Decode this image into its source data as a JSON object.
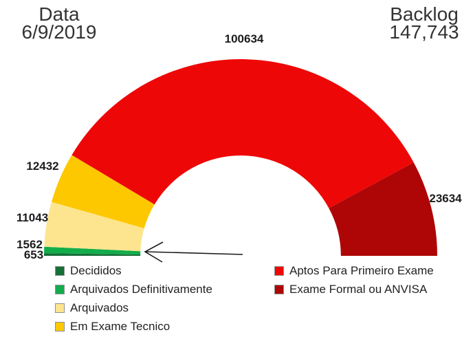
{
  "header": {
    "date_label": "Data",
    "date_value": "6/9/2019",
    "backlog_label": "Backlog",
    "backlog_value": "147,743"
  },
  "chart_data": {
    "type": "pie",
    "variant": "half_donut",
    "title": "",
    "categories": [
      "Decididos",
      "Arquivados Definitivamente",
      "Arquivados",
      "Em Exame Tecnico",
      "Aptos Para Primeiro Exame",
      "Exame Formal ou ANVISA"
    ],
    "values": [
      653,
      1562,
      11043,
      12432,
      100634,
      23634
    ],
    "colors": [
      "#166e38",
      "#12ad4b",
      "#fde58f",
      "#fdc800",
      "#ee0707",
      "#ae0606"
    ],
    "start_angle_deg": 180,
    "end_angle_deg": 0,
    "inner_radius_ratio": 0.51,
    "legend_position": "bottom",
    "annotation": {
      "type": "arrow",
      "points_to": "thin Decididos / Arquivados Definitivamente slices"
    }
  }
}
